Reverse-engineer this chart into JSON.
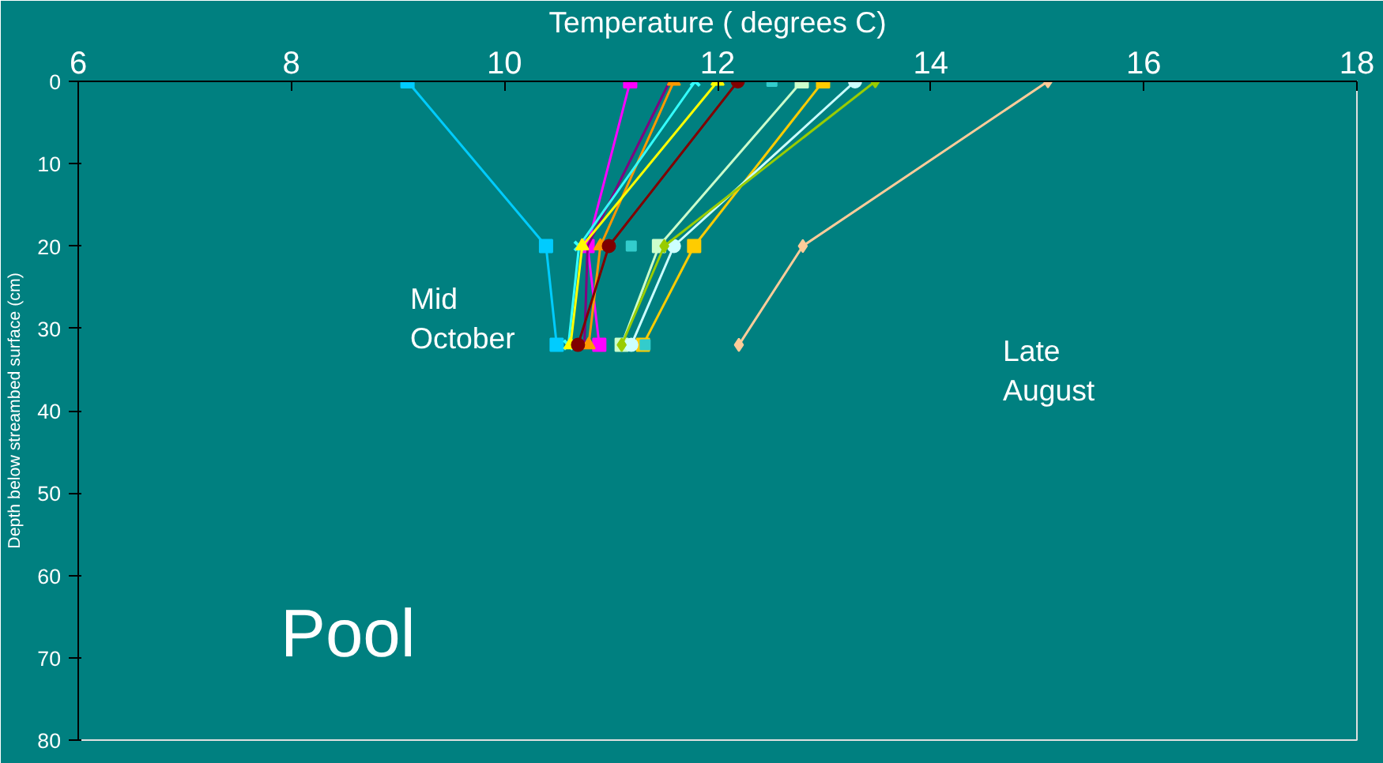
{
  "chart_data": {
    "type": "line",
    "xlabel": "Temperature ( degrees C)",
    "ylabel": "Depth below streambed surface (cm)",
    "xlim": [
      6,
      18
    ],
    "xticks": [
      6,
      8,
      10,
      12,
      14,
      16,
      18
    ],
    "ylim": [
      80,
      0
    ],
    "yticks": [
      0,
      10,
      20,
      30,
      40,
      50,
      60,
      70,
      80
    ],
    "grid": false,
    "series": [
      {
        "color": "#00ccff",
        "marker": "square",
        "x": [
          9.09,
          10.39,
          10.49
        ],
        "values": [
          0,
          20,
          32
        ]
      },
      {
        "color": "#ff00ff",
        "marker": "square",
        "x": [
          11.18,
          10.78,
          10.89
        ],
        "values": [
          0,
          20,
          32
        ]
      },
      {
        "color": "#800080",
        "marker": "none",
        "x": [
          11.55,
          10.78,
          10.75
        ],
        "values": [
          0,
          20,
          32
        ]
      },
      {
        "color": "#ff9900",
        "marker": "triangle",
        "x": [
          11.59,
          10.9,
          10.79
        ],
        "values": [
          0,
          20,
          32
        ]
      },
      {
        "color": "#33ffff",
        "marker": "cross",
        "x": [
          11.79,
          10.7,
          10.6
        ],
        "values": [
          0,
          20,
          32
        ]
      },
      {
        "color": "#ffff00",
        "marker": "triangle",
        "x": [
          12.0,
          10.73,
          10.62
        ],
        "values": [
          0,
          20,
          32
        ]
      },
      {
        "color": "#800000",
        "marker": "circle",
        "x": [
          12.19,
          10.98,
          10.69
        ],
        "values": [
          0,
          20,
          32
        ]
      },
      {
        "color": "#ccffcc",
        "marker": "square",
        "x": [
          12.79,
          11.45,
          11.1
        ],
        "values": [
          0,
          20,
          32
        ]
      },
      {
        "color": "#ffcc00",
        "marker": "square",
        "x": [
          12.99,
          11.78,
          11.3
        ],
        "values": [
          0,
          20,
          32
        ]
      },
      {
        "color": "#ccffff",
        "marker": "circle",
        "x": [
          13.29,
          11.59,
          11.19
        ],
        "values": [
          0,
          20,
          32
        ]
      },
      {
        "color": "#99cc00",
        "marker": "diamond",
        "x": [
          13.48,
          11.5,
          11.1
        ],
        "values": [
          0,
          20,
          32
        ]
      },
      {
        "type": "scatter",
        "color": "#33cccc",
        "marker": "square",
        "x": [
          12.51,
          11.19,
          11.32
        ],
        "values": [
          0,
          20,
          32
        ]
      },
      {
        "color": "#ffcc99",
        "marker": "diamond",
        "x": [
          15.1,
          12.8,
          12.2
        ],
        "values": [
          0,
          20,
          32
        ]
      }
    ],
    "annotations": [
      "Mid\nOctober",
      "Late\nAugust",
      "Pool"
    ]
  }
}
